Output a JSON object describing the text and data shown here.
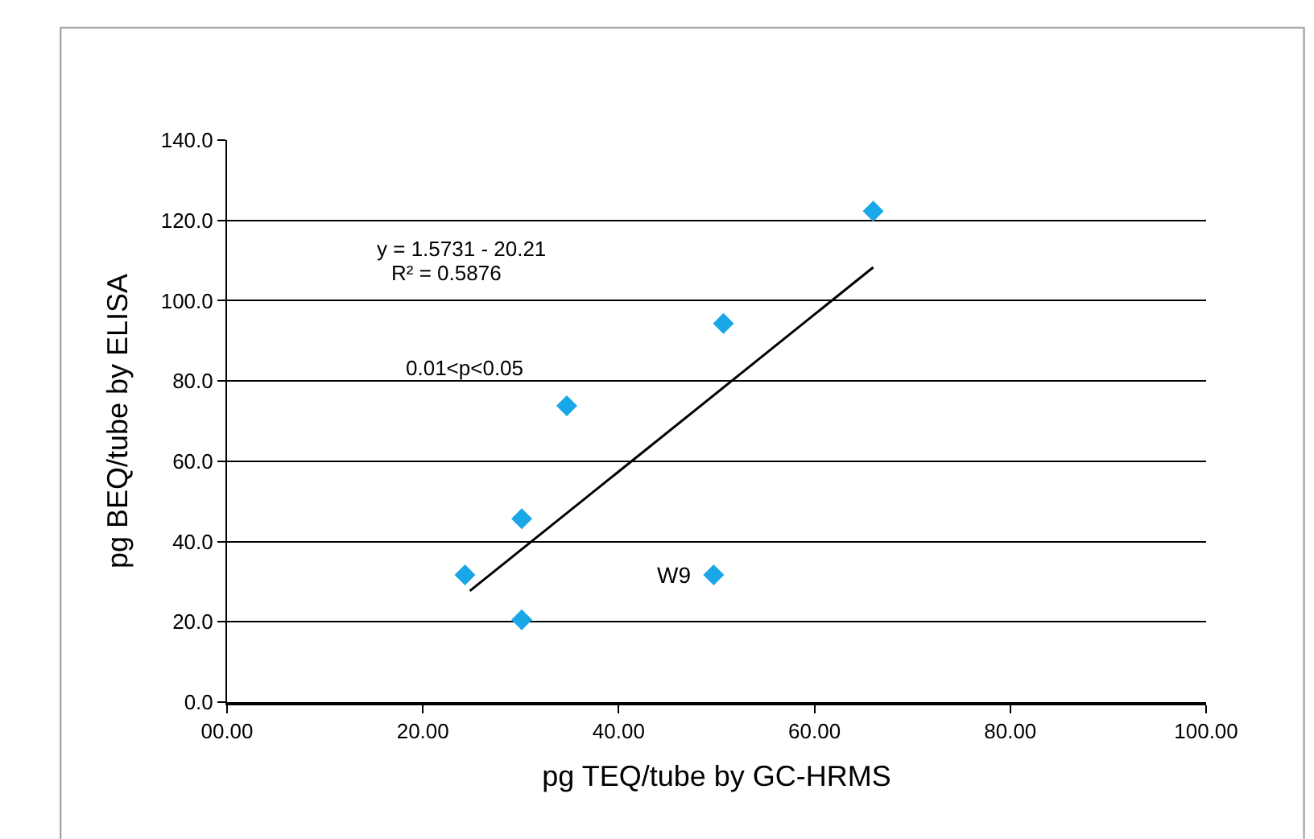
{
  "chart_data": {
    "type": "scatter",
    "xlabel": "pg TEQ/tube by GC-HRMS",
    "ylabel": "pg BEQ/tube by ELISA",
    "xlim": [
      0,
      100
    ],
    "ylim": [
      0,
      140
    ],
    "xticks": [
      {
        "value": 0,
        "label": "00.00"
      },
      {
        "value": 20,
        "label": "20.00"
      },
      {
        "value": 40,
        "label": "40.00"
      },
      {
        "value": 60,
        "label": "60.00"
      },
      {
        "value": 80,
        "label": "80.00"
      },
      {
        "value": 100,
        "label": "100.00"
      }
    ],
    "yticks": [
      {
        "value": 0,
        "label": "0.0"
      },
      {
        "value": 20,
        "label": "20.0"
      },
      {
        "value": 40,
        "label": "40.0"
      },
      {
        "value": 60,
        "label": "60.0"
      },
      {
        "value": 80,
        "label": "80.0"
      },
      {
        "value": 100,
        "label": "100.0"
      },
      {
        "value": 120,
        "label": "120.0"
      },
      {
        "value": 140,
        "label": "140.0"
      }
    ],
    "grid": "y",
    "marker": "diamond",
    "series": [
      {
        "color": "#1aa7e8",
        "x": [
          24.3,
          30.1,
          30.1,
          34.7,
          49.7,
          50.7,
          66.0
        ],
        "values": [
          31.7,
          20.5,
          45.7,
          73.8,
          31.7,
          94.3,
          122.3
        ]
      },
      {
        "type": "line",
        "color": "#000000",
        "x": [
          24.8,
          66.0
        ],
        "values": [
          27.7,
          108.3
        ],
        "marker": "none"
      }
    ],
    "annotations": [
      "y = 1.5731 - 20.21",
      "R² = 0.5876",
      "0.01<p<0.05",
      {
        "text": "W9",
        "x": 49.7,
        "y": 31.7
      }
    ]
  }
}
